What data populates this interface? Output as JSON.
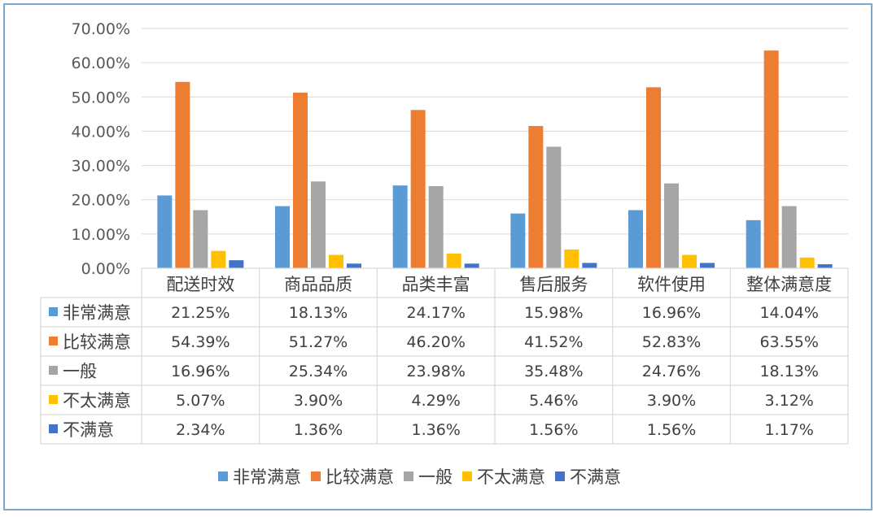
{
  "chart_data": {
    "type": "bar",
    "categories": [
      "配送时效",
      "商品品质",
      "品类丰富",
      "售后服务",
      "软件使用",
      "整体满意度"
    ],
    "ylim": [
      0,
      70
    ],
    "yticks": [
      "0.00%",
      "10.00%",
      "20.00%",
      "30.00%",
      "40.00%",
      "50.00%",
      "60.00%",
      "70.00%"
    ],
    "grid": true,
    "legend_position": "bottom",
    "series": [
      {
        "name": "非常满意",
        "color": "#5B9BD5",
        "values": [
          21.25,
          18.13,
          24.17,
          15.98,
          16.96,
          14.04
        ],
        "labels": [
          "21.25%",
          "18.13%",
          "24.17%",
          "15.98%",
          "16.96%",
          "14.04%"
        ]
      },
      {
        "name": "比较满意",
        "color": "#ED7D31",
        "values": [
          54.39,
          51.27,
          46.2,
          41.52,
          52.83,
          63.55
        ],
        "labels": [
          "54.39%",
          "51.27%",
          "46.20%",
          "41.52%",
          "52.83%",
          "63.55%"
        ]
      },
      {
        "name": "一般",
        "color": "#A5A5A5",
        "values": [
          16.96,
          25.34,
          23.98,
          35.48,
          24.76,
          18.13
        ],
        "labels": [
          "16.96%",
          "25.34%",
          "23.98%",
          "35.48%",
          "24.76%",
          "18.13%"
        ]
      },
      {
        "name": "不太满意",
        "color": "#FFC000",
        "values": [
          5.07,
          3.9,
          4.29,
          5.46,
          3.9,
          3.12
        ],
        "labels": [
          "5.07%",
          "3.90%",
          "4.29%",
          "5.46%",
          "3.90%",
          "3.12%"
        ]
      },
      {
        "name": "不满意",
        "color": "#4472C4",
        "values": [
          2.34,
          1.36,
          1.36,
          1.56,
          1.56,
          1.17
        ],
        "labels": [
          "2.34%",
          "1.36%",
          "1.36%",
          "1.56%",
          "1.56%",
          "1.17%"
        ]
      }
    ]
  }
}
